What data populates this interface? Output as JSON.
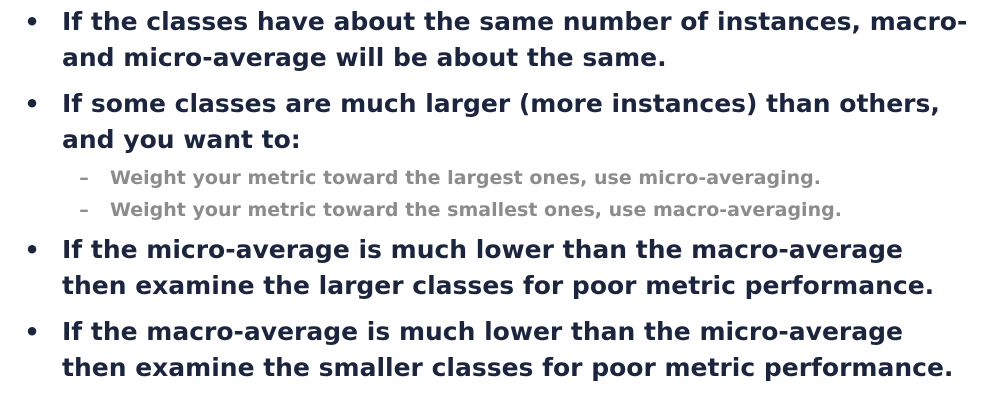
{
  "bullets": [
    {
      "marker": "•",
      "text": "If the classes have about the same number of instances, macro- and micro-average will be about the same."
    },
    {
      "marker": "•",
      "text": "If some classes are much larger (more instances) than others, and you want to:",
      "subitems": [
        {
          "marker": "–",
          "text": "Weight your metric toward the largest ones, use micro-averaging."
        },
        {
          "marker": "–",
          "text": "Weight your metric toward the smallest ones, use macro-averaging."
        }
      ]
    },
    {
      "marker": "•",
      "text": "If the micro-average is much lower than the macro-average then examine the larger classes for poor metric performance."
    },
    {
      "marker": "•",
      "text": "If the macro-average is much lower than the micro-average then examine the smaller classes for poor metric performance."
    }
  ],
  "colors": {
    "main_text": "#1b2540",
    "sub_text": "#8c8c8c",
    "background": "#ffffff"
  }
}
